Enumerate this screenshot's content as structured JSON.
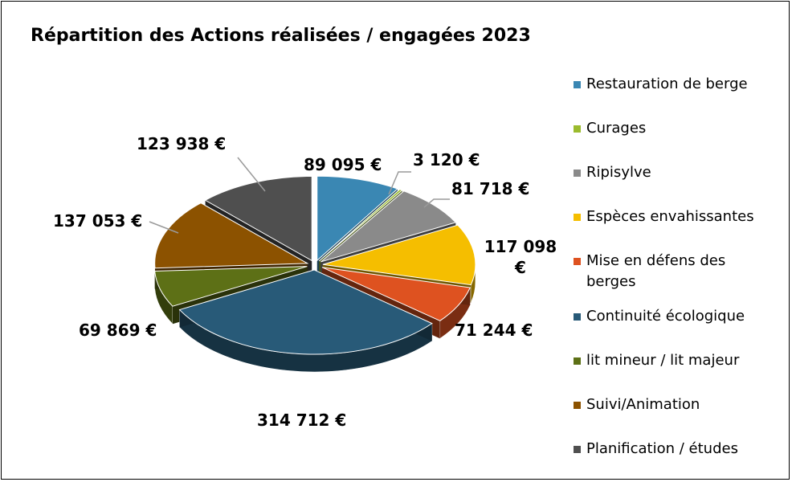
{
  "chart_data": {
    "type": "pie",
    "title": "Répartition des Actions réalisées / engagées 2023",
    "categories": [
      "Restauration de berge",
      "Curages",
      "Ripisylve",
      "Espèces envahissantes",
      "Mise en défens des berges",
      "Continuité écologique",
      "lit mineur / lit majeur",
      "Suivi/Animation",
      "Planification / études"
    ],
    "values": [
      89095,
      3120,
      81718,
      117098,
      71244,
      314712,
      69869,
      137053,
      123938
    ],
    "data_labels": [
      "89 095 €",
      "3 120 €",
      "81 718 €",
      "117 098 €",
      "71 244 €",
      "314 712 €",
      "69 869 €",
      "137 053 €",
      "123 938 €"
    ],
    "colors": [
      "#3a87b3",
      "#9bbb2e",
      "#8a8a8a",
      "#f5be00",
      "#de5220",
      "#285a78",
      "#5d7016",
      "#8c5200",
      "#4f4f4f"
    ],
    "legend_position": "right",
    "style": "3d-exploded"
  }
}
